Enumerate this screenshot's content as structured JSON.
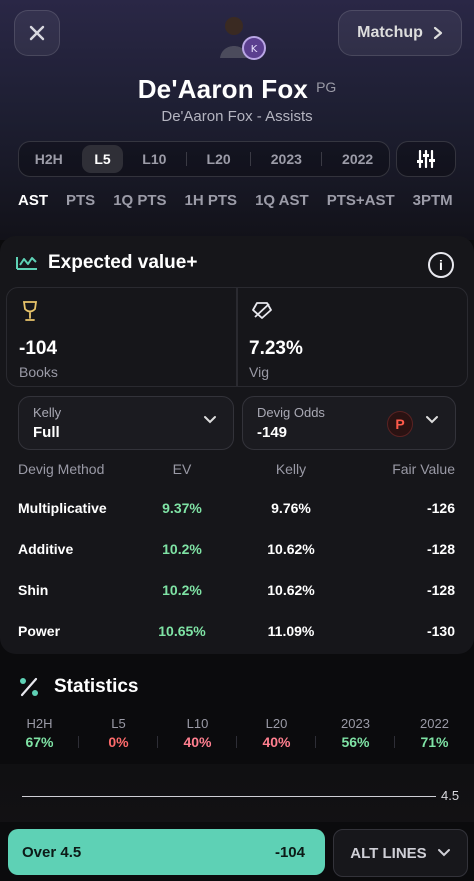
{
  "header": {
    "close_icon": "close-icon",
    "matchup_label": "Matchup",
    "player_name": "De'Aaron Fox",
    "position": "PG",
    "subtitle": "De'Aaron Fox - Assists"
  },
  "ranges": [
    "H2H",
    "L5",
    "L10",
    "L20",
    "2023",
    "2022"
  ],
  "active_range": "L5",
  "tabs": [
    "AST",
    "PTS",
    "1Q PTS",
    "1H PTS",
    "1Q AST",
    "PTS+AST",
    "3PTM"
  ],
  "active_tab": "AST",
  "ev": {
    "title": "Expected value+",
    "books_value": "-104",
    "books_label": "Books",
    "vig_value": "7.23%",
    "vig_label": "Vig",
    "kelly_label": "Kelly",
    "kelly_value": "Full",
    "devig_label": "Devig Odds",
    "devig_value": "-149",
    "devig_badge": "P",
    "table_headers": [
      "Devig Method",
      "EV",
      "Kelly",
      "Fair Value"
    ],
    "rows": [
      {
        "method": "Multiplicative",
        "ev": "9.37%",
        "kelly": "9.76%",
        "fair": "-126"
      },
      {
        "method": "Additive",
        "ev": "10.2%",
        "kelly": "10.62%",
        "fair": "-128"
      },
      {
        "method": "Shin",
        "ev": "10.2%",
        "kelly": "10.62%",
        "fair": "-128"
      },
      {
        "method": "Power",
        "ev": "10.65%",
        "kelly": "11.09%",
        "fair": "-130"
      }
    ]
  },
  "stats": {
    "title": "Statistics",
    "items": [
      {
        "label": "H2H",
        "value": "67%",
        "color": "#7fe3a5"
      },
      {
        "label": "L5",
        "value": "0%",
        "color": "#ff6b6b"
      },
      {
        "label": "L10",
        "value": "40%",
        "color": "#ff7f8f"
      },
      {
        "label": "L20",
        "value": "40%",
        "color": "#ff7f8f"
      },
      {
        "label": "2023",
        "value": "56%",
        "color": "#7fe3a5"
      },
      {
        "label": "2022",
        "value": "71%",
        "color": "#7fe3a5"
      }
    ],
    "line_value": "4.5"
  },
  "bottom": {
    "over_label": "Over 4.5",
    "over_price": "-104",
    "alt_label": "ALT LINES"
  },
  "colors": {
    "accent": "#5ed1b5",
    "positive": "#7fe3a5",
    "negative": "#ff6b6b"
  }
}
